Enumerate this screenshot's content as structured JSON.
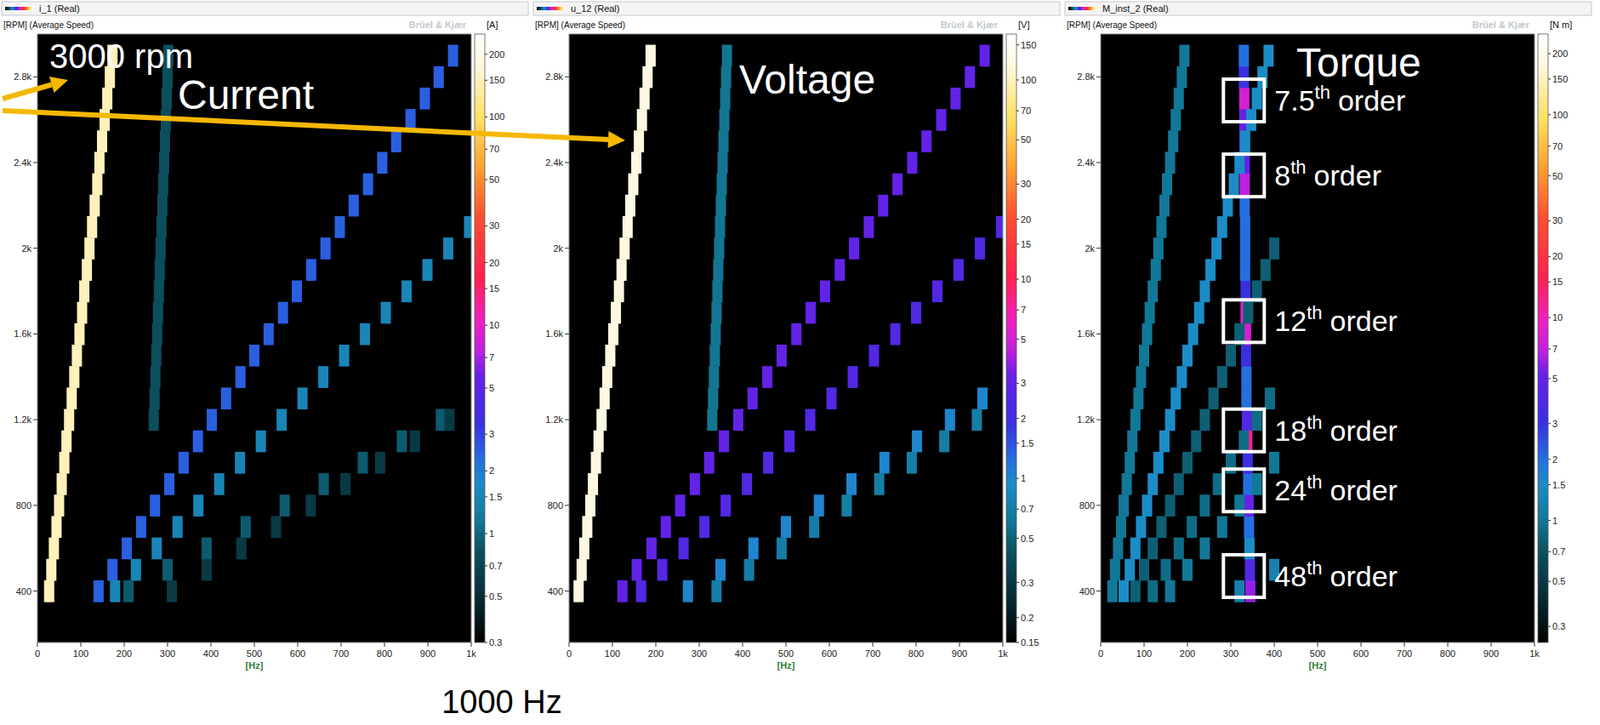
{
  "chart_data": [
    {
      "type": "heatmap",
      "channel": "i_1 (Real)",
      "y_axis_label": "[RPM] (Average Speed)",
      "unit": "[A]",
      "watermark": "Brüel & Kjær",
      "title": "Current",
      "x_label": "[Hz]",
      "xlim": [
        0,
        1000
      ],
      "xticks": [
        0,
        100,
        200,
        300,
        400,
        500,
        600,
        700,
        800,
        900,
        {
          "value": 1000,
          "label": "1k"
        }
      ],
      "ylim": [
        160,
        3000
      ],
      "yticks": [
        400,
        800,
        {
          "value": 1200,
          "label": "1.2k"
        },
        {
          "value": 1600,
          "label": "1.6k"
        },
        {
          "value": 2000,
          "label": "2k"
        },
        {
          "value": 2400,
          "label": "2.4k"
        },
        {
          "value": 2800,
          "label": "2.8k"
        }
      ],
      "rows": [
        400,
        500,
        600,
        700,
        800,
        900,
        1000,
        1100,
        1200,
        1300,
        1400,
        1500,
        1600,
        1700,
        1800,
        1900,
        2000,
        2100,
        2200,
        2300,
        2400,
        2500,
        2600,
        2700,
        2800,
        2900
      ],
      "traces": [
        {
          "hz": [
            27,
            32,
            38,
            44,
            50,
            56,
            62,
            67,
            73,
            79,
            85,
            91,
            97,
            103,
            108,
            114,
            120,
            126,
            132,
            138,
            143,
            149,
            155,
            161,
            167,
            173
          ],
          "level": 150
        },
        {
          "hz": [
            141,
            173,
            206,
            239,
            271,
            304,
            337,
            370,
            402,
            435,
            468,
            500,
            533,
            566,
            598,
            631,
            664,
            697,
            729,
            762,
            795,
            827,
            860,
            893,
            925,
            958
          ],
          "level": 2.5
        },
        {
          "hz": [
            179,
            227,
            275,
            323,
            371,
            419,
            467,
            515,
            563,
            611,
            659,
            707,
            755,
            803,
            851,
            899,
            947,
            995,
            null,
            null,
            null,
            null,
            null,
            null,
            null,
            null
          ],
          "level": 1.5
        },
        {
          "hz": [
            210,
            300,
            390,
            480,
            570,
            660,
            750,
            840,
            930,
            null,
            null,
            null,
            null,
            null,
            null,
            null,
            null,
            null,
            null,
            null,
            null,
            null,
            null,
            null,
            null,
            null
          ],
          "level": 0.9
        },
        {
          "hz": [
            310,
            390,
            470,
            550,
            630,
            710,
            790,
            870,
            950,
            null,
            null,
            null,
            null,
            null,
            null,
            null,
            null,
            null,
            null,
            null,
            null,
            null,
            null,
            null,
            null,
            null
          ],
          "level": 0.6
        },
        {
          "hz": [
            null,
            null,
            null,
            null,
            null,
            null,
            null,
            null,
            268,
            270,
            272,
            274,
            276,
            278,
            280,
            282,
            284,
            286,
            288,
            290,
            292,
            294,
            296,
            298,
            300,
            302
          ],
          "level": 0.8
        }
      ],
      "color_range": [
        0.3,
        250
      ],
      "color_ticks": [
        0.3,
        0.5,
        0.7,
        1,
        1.5,
        2,
        3,
        5,
        7,
        10,
        15,
        20,
        30,
        50,
        70,
        100,
        150,
        200
      ],
      "annotations": [
        {
          "text": "3000 rpm"
        },
        {
          "text": "1000 Hz"
        }
      ]
    },
    {
      "type": "heatmap",
      "channel": "u_12 (Real)",
      "y_axis_label": "[RPM] (Average Speed)",
      "unit": "[V]",
      "watermark": "Brüel & Kjær",
      "title": "Voltage",
      "x_label": "[Hz]",
      "xlim": [
        0,
        1000
      ],
      "xticks": [
        0,
        100,
        200,
        300,
        400,
        500,
        600,
        700,
        800,
        900,
        {
          "value": 1000,
          "label": "1k"
        }
      ],
      "ylim": [
        160,
        3000
      ],
      "yticks": [
        400,
        800,
        {
          "value": 1200,
          "label": "1.2k"
        },
        {
          "value": 1600,
          "label": "1.6k"
        },
        {
          "value": 2000,
          "label": "2k"
        },
        {
          "value": 2400,
          "label": "2.4k"
        },
        {
          "value": 2800,
          "label": "2.8k"
        }
      ],
      "rows": [
        400,
        500,
        600,
        700,
        800,
        900,
        1000,
        1100,
        1200,
        1300,
        1400,
        1500,
        1600,
        1700,
        1800,
        1900,
        2000,
        2100,
        2200,
        2300,
        2400,
        2500,
        2600,
        2700,
        2800,
        2900
      ],
      "traces": [
        {
          "hz": [
            22,
            29,
            35,
            42,
            49,
            55,
            62,
            68,
            75,
            82,
            88,
            95,
            102,
            108,
            115,
            121,
            128,
            135,
            141,
            148,
            155,
            161,
            168,
            174,
            181,
            188
          ],
          "level": 120
        },
        {
          "hz": [
            123,
            156,
            190,
            223,
            256,
            290,
            323,
            357,
            390,
            423,
            457,
            490,
            524,
            557,
            590,
            624,
            657,
            691,
            724,
            757,
            791,
            824,
            858,
            891,
            924,
            958
          ],
          "level": 3
        },
        {
          "hz": [
            166,
            215,
            264,
            312,
            361,
            410,
            459,
            508,
            556,
            605,
            654,
            703,
            752,
            800,
            849,
            898,
            947,
            996,
            null,
            null,
            null,
            null,
            null,
            null,
            null,
            null
          ],
          "level": 2.5
        },
        {
          "hz": [
            274,
            349,
            425,
            500,
            576,
            651,
            727,
            802,
            878,
            953,
            null,
            null,
            null,
            null,
            null,
            null,
            null,
            null,
            null,
            null,
            null,
            null,
            null,
            null,
            null,
            null
          ],
          "level": 1
        },
        {
          "hz": [
            340,
            415,
            490,
            565,
            640,
            715,
            790,
            865,
            940,
            null,
            null,
            null,
            null,
            null,
            null,
            null,
            null,
            null,
            null,
            null,
            null,
            null,
            null,
            null,
            null,
            null
          ],
          "level": 0.7
        },
        {
          "hz": [
            null,
            null,
            null,
            null,
            null,
            null,
            null,
            null,
            330,
            332,
            334,
            336,
            338,
            340,
            342,
            344,
            346,
            348,
            350,
            352,
            354,
            356,
            358,
            360,
            362,
            364
          ],
          "level": 0.6
        }
      ],
      "color_range": [
        0.15,
        170
      ],
      "color_ticks": [
        0.15,
        0.2,
        0.3,
        0.5,
        0.7,
        1,
        1.5,
        2,
        3,
        5,
        7,
        10,
        15,
        20,
        30,
        50,
        70,
        100,
        150
      ]
    },
    {
      "type": "heatmap",
      "channel": "M_inst_2 (Real)",
      "y_axis_label": "[RPM] (Average Speed)",
      "unit": "[N m]",
      "watermark": "Brüel & Kjær",
      "title": "Torque",
      "x_label": "[Hz]",
      "xlim": [
        0,
        1000
      ],
      "xticks": [
        0,
        100,
        200,
        300,
        400,
        500,
        600,
        700,
        800,
        900,
        {
          "value": 1000,
          "label": "1k"
        }
      ],
      "ylim": [
        160,
        3000
      ],
      "yticks": [
        400,
        800,
        {
          "value": 1200,
          "label": "1.2k"
        },
        {
          "value": 1600,
          "label": "1.6k"
        },
        {
          "value": 2000,
          "label": "2k"
        },
        {
          "value": 2400,
          "label": "2.4k"
        },
        {
          "value": 2800,
          "label": "2.8k"
        }
      ],
      "rows": [
        400,
        500,
        600,
        700,
        800,
        900,
        1000,
        1100,
        1200,
        1300,
        1400,
        1500,
        1600,
        1700,
        1800,
        1900,
        2000,
        2100,
        2200,
        2300,
        2400,
        2500,
        2600,
        2700,
        2800,
        2900
      ],
      "traces": [
        {
          "hz": [
            345,
            344,
            343,
            342,
            341,
            340,
            339,
            338,
            337,
            336,
            336,
            335,
            335,
            334,
            334,
            333,
            333,
            333,
            332,
            332,
            332,
            331,
            331,
            331,
            330,
            330
          ],
          "levels": [
            6,
            4,
            1.5,
            2,
            5,
            2,
            3,
            12,
            4,
            2,
            2,
            3,
            8,
            9,
            3,
            2,
            2,
            2,
            2,
            7,
            5,
            4,
            5,
            8,
            3,
            2
          ]
        },
        {
          "hz": [
            27,
            33,
            40,
            47,
            53,
            60,
            67,
            73,
            80,
            87,
            93,
            100,
            107,
            113,
            120,
            127,
            133,
            140,
            147,
            153,
            160,
            167,
            173,
            180,
            187,
            193
          ],
          "level": 1
        },
        {
          "hz": [
            53,
            67,
            80,
            93,
            107,
            120,
            133,
            147,
            160,
            173,
            187,
            200,
            213,
            227,
            240,
            253,
            267,
            280,
            293,
            307,
            320,
            333,
            347,
            360,
            373,
            387
          ],
          "level": 1.5
        },
        {
          "hz": [
            80,
            100,
            120,
            140,
            160,
            180,
            200,
            220,
            240,
            260,
            280,
            300,
            320,
            340,
            360,
            380,
            400,
            null,
            null,
            null,
            null,
            null,
            null,
            null,
            null,
            null
          ],
          "level": 0.8
        },
        {
          "hz": [
            120,
            150,
            180,
            210,
            240,
            270,
            300,
            330,
            360,
            390,
            null,
            null,
            null,
            null,
            null,
            null,
            null,
            null,
            null,
            null,
            null,
            null,
            null,
            null,
            null,
            null
          ],
          "level": 0.9
        },
        {
          "hz": [
            160,
            200,
            240,
            280,
            320,
            360,
            400,
            null,
            null,
            null,
            null,
            null,
            null,
            null,
            null,
            null,
            null,
            null,
            null,
            null,
            null,
            null,
            null,
            null,
            null,
            null
          ],
          "level": 1
        },
        {
          "hz": [
            320,
            400,
            null,
            null,
            null,
            null,
            null,
            null,
            null,
            null,
            null,
            null,
            null,
            null,
            null,
            null,
            null,
            null,
            null,
            null,
            null,
            null,
            null,
            null,
            null,
            null
          ],
          "level": 1.2
        }
      ],
      "color_range": [
        0.25,
        250
      ],
      "color_ticks": [
        0.3,
        0.5,
        0.7,
        1,
        1.5,
        2,
        3,
        5,
        7,
        10,
        15,
        20,
        30,
        50,
        70,
        100,
        150,
        200
      ],
      "orders": [
        {
          "base": "7.5",
          "sup": "th",
          "text": "order",
          "rpm": 2690,
          "hz": 330
        },
        {
          "base": "8",
          "sup": "th",
          "text": "order",
          "rpm": 2340,
          "hz": 330
        },
        {
          "base": "12",
          "sup": "th",
          "text": "order",
          "rpm": 1660,
          "hz": 330
        },
        {
          "base": "18",
          "sup": "th",
          "text": "order",
          "rpm": 1150,
          "hz": 330
        },
        {
          "base": "24",
          "sup": "th",
          "text": "order",
          "rpm": 870,
          "hz": 330
        },
        {
          "base": "48",
          "sup": "th",
          "text": "order",
          "rpm": 470,
          "hz": 330
        }
      ]
    }
  ]
}
